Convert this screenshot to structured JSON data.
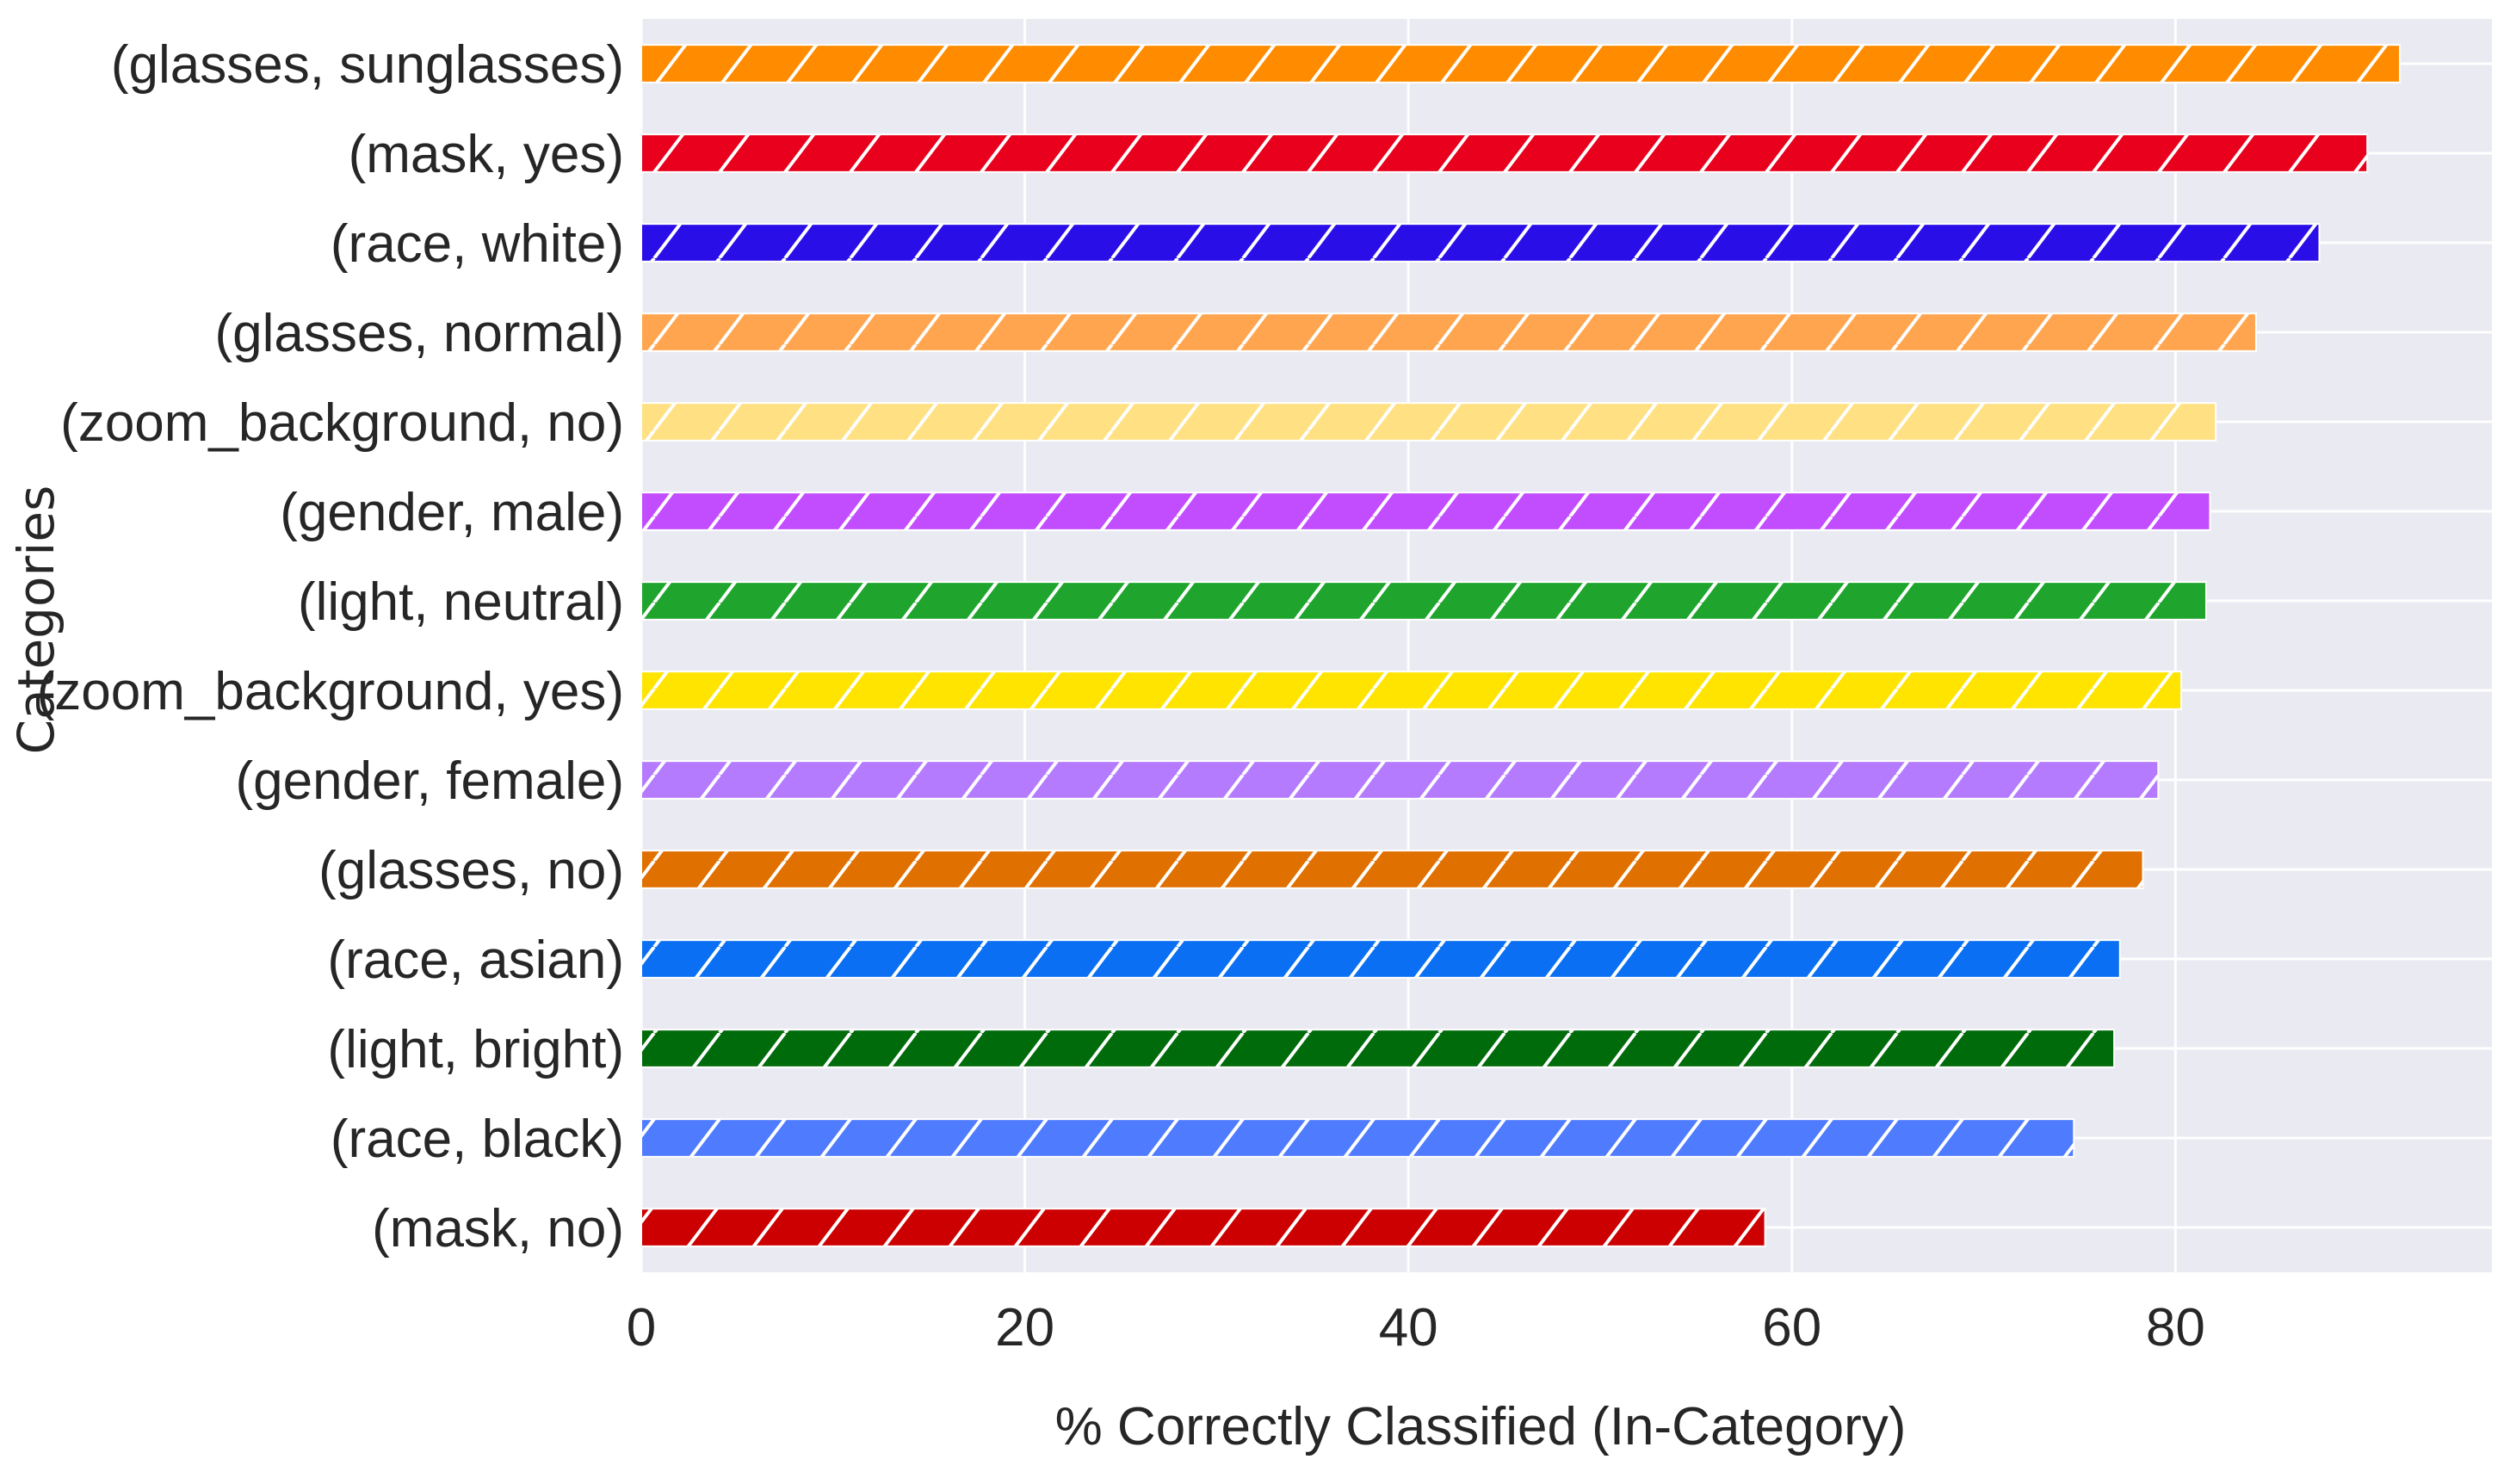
{
  "chart_data": {
    "type": "bar",
    "orientation": "horizontal",
    "xlabel": "% Correctly Classified (In-Category)",
    "ylabel": "Categories",
    "xlim": [
      0,
      96.5
    ],
    "xticks": [
      0,
      20,
      40,
      60,
      80
    ],
    "grid": true,
    "hatch": "diagonal",
    "categories": [
      "(glasses, sunglasses)",
      "(mask, yes)",
      "(race, white)",
      "(glasses, normal)",
      "(zoom_background, no)",
      "(gender, male)",
      "(light, neutral)",
      "(zoom_background, yes)",
      "(gender, female)",
      "(glasses, no)",
      "(race, asian)",
      "(light, bright)",
      "(race, black)",
      "(mask, no)"
    ],
    "values": [
      91.7,
      90.0,
      87.5,
      84.2,
      82.1,
      81.8,
      81.6,
      80.3,
      79.1,
      78.3,
      77.1,
      76.8,
      74.7,
      58.6
    ],
    "colors": [
      "#ff8c00",
      "#e8001c",
      "#2a0ee8",
      "#ffa54f",
      "#ffe082",
      "#c24dff",
      "#1fa52e",
      "#ffe400",
      "#b57bff",
      "#e07000",
      "#0a6ff2",
      "#006b0a",
      "#4f7bff",
      "#cc0000"
    ]
  }
}
